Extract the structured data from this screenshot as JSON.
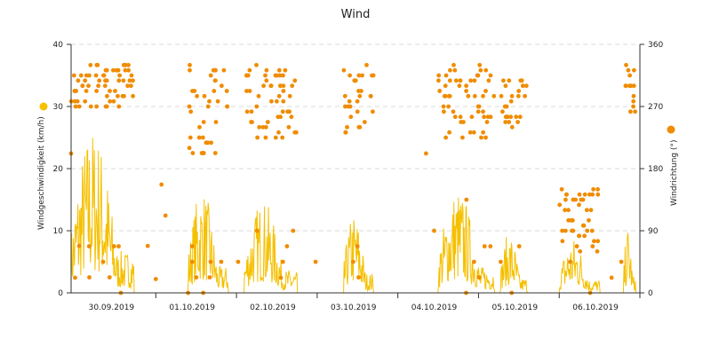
{
  "chart_data": {
    "type": "line+scatter",
    "title": "Wind",
    "ylabel_left": "Windgeschwindigkeit (km/h)",
    "ylabel_right": "Windrichtung (°)",
    "left_axis": {
      "min": 0,
      "max": 40,
      "ticks": [
        "0",
        "10",
        "20",
        "30",
        "40"
      ]
    },
    "right_axis": {
      "min": 0,
      "max": 360,
      "ticks": [
        "0",
        "90",
        "180",
        "270",
        "360"
      ]
    },
    "grid": true,
    "x_range": [
      0,
      7.05
    ],
    "dates": [
      {
        "label": "30.09.2019",
        "pos": 0.5
      },
      {
        "label": "01.10.2019",
        "pos": 1.5
      },
      {
        "label": "02.10.2019",
        "pos": 2.5
      },
      {
        "label": "03.10.2019",
        "pos": 3.5
      },
      {
        "label": "04.10.2019",
        "pos": 4.5
      },
      {
        "label": "05.10.2019",
        "pos": 5.5
      },
      {
        "label": "06.10.2019",
        "pos": 6.5
      }
    ],
    "day_boundaries": [
      1.05,
      2.05,
      3.05,
      4.05,
      5.05,
      6.05,
      7.05
    ],
    "series": [
      {
        "key": "speed",
        "axis": "left",
        "type": "line",
        "color": "#f5c000"
      },
      {
        "key": "direction",
        "axis": "right",
        "type": "scatter",
        "color": "#f08c00"
      }
    ],
    "bursts": [
      {
        "start": 0.0,
        "end": 0.78,
        "peak": 27
      },
      {
        "start": 1.45,
        "end": 1.95,
        "peak": 17
      },
      {
        "start": 2.15,
        "end": 2.8,
        "peak": 15
      },
      {
        "start": 3.38,
        "end": 3.75,
        "peak": 13
      },
      {
        "start": 4.55,
        "end": 5.25,
        "peak": 17
      },
      {
        "start": 5.32,
        "end": 5.65,
        "peak": 10
      },
      {
        "start": 6.05,
        "end": 6.55,
        "peak": 9
      },
      {
        "start": 6.85,
        "end": 7.0,
        "peak": 11
      }
    ],
    "clusters": [
      {
        "start": 0.0,
        "end": 0.78,
        "low": 270,
        "high": 330
      },
      {
        "start": 1.45,
        "end": 1.95,
        "low": 200,
        "high": 330
      },
      {
        "start": 2.15,
        "end": 2.8,
        "low": 225,
        "high": 330
      },
      {
        "start": 3.38,
        "end": 3.75,
        "low": 225,
        "high": 330
      },
      {
        "start": 4.55,
        "end": 5.25,
        "low": 225,
        "high": 330
      },
      {
        "start": 5.32,
        "end": 5.65,
        "low": 240,
        "high": 310
      },
      {
        "start": 6.05,
        "end": 6.55,
        "low": 60,
        "high": 155
      },
      {
        "start": 6.85,
        "end": 7.0,
        "low": 250,
        "high": 330
      }
    ]
  }
}
